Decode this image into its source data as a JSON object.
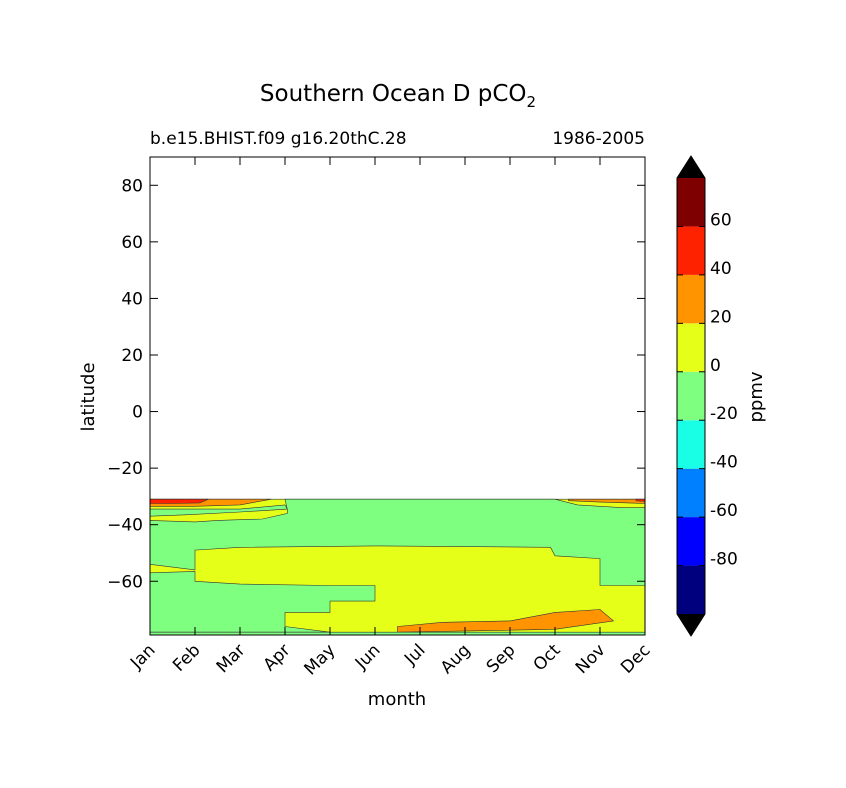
{
  "chart_data": {
    "type": "contour",
    "title": "Southern Ocean D pCO",
    "title_subscript": "2",
    "subtitle_left": "b.e15.BHIST.f09 g16.20thC.28",
    "subtitle_right": "1986-2005",
    "xlabel": "month",
    "ylabel": "latitude",
    "x_tick_labels": [
      "Jan",
      "Feb",
      "Mar",
      "Apr",
      "May",
      "Jun",
      "Jul",
      "Aug",
      "Sep",
      "Oct",
      "Nov",
      "Dec"
    ],
    "xlim": [
      0,
      11
    ],
    "ylim": [
      -79,
      90
    ],
    "y_ticks": [
      80,
      60,
      40,
      20,
      0,
      -20,
      -40,
      -60
    ],
    "y_tick_labels": [
      "80",
      "60",
      "40",
      "20",
      "0",
      "−20",
      "−40",
      "−60"
    ],
    "data_top_latitude": -31,
    "colorbar": {
      "label": "ppmv",
      "levels": [
        -100,
        -80,
        -60,
        -40,
        -20,
        0,
        20,
        40,
        60,
        80
      ],
      "tick_values": [
        60,
        40,
        20,
        0,
        -20,
        -40,
        -60,
        -80
      ],
      "tick_labels": [
        "60",
        "40",
        "20",
        "0",
        "-20",
        "-40",
        "-60",
        "-80"
      ],
      "colors": [
        "#00007f",
        "#0000ff",
        "#007fff",
        "#19ffe5",
        "#7fff7f",
        "#e5ff19",
        "#ff9400",
        "#ff2200",
        "#7f0000"
      ],
      "extend_low_color": "#000000",
      "extend_high_color": "#000000"
    },
    "regions": [
      {
        "level": "0 to 20",
        "color": "#e5ff19",
        "points": [
          [
            0,
            -31
          ],
          [
            11,
            -31
          ],
          [
            11,
            -79
          ],
          [
            0,
            -79
          ]
        ]
      },
      {
        "level": "-20 to 0",
        "color": "#7fff7f",
        "points": [
          [
            0,
            -34.5
          ],
          [
            2,
            -34.5
          ],
          [
            3,
            -33
          ],
          [
            3.05,
            -34.5
          ],
          [
            2,
            -35.5
          ],
          [
            0.8,
            -36.5
          ],
          [
            0,
            -37
          ]
        ]
      },
      {
        "level": "-20 to 0",
        "color": "#7fff7f",
        "points": [
          [
            3,
            -31
          ],
          [
            9,
            -31
          ],
          [
            9.5,
            -33
          ],
          [
            10.5,
            -34
          ],
          [
            11,
            -34
          ],
          [
            11,
            -61.5
          ],
          [
            10,
            -61.5
          ],
          [
            10,
            -52
          ],
          [
            9,
            -51
          ],
          [
            8.9,
            -48
          ],
          [
            5,
            -47.5
          ],
          [
            2,
            -48
          ],
          [
            1,
            -49
          ],
          [
            1,
            -56
          ],
          [
            0,
            -54
          ],
          [
            0,
            -38.5
          ],
          [
            1,
            -39
          ],
          [
            1.5,
            -38.5
          ],
          [
            2.5,
            -38
          ],
          [
            3.05,
            -36
          ],
          [
            3.05,
            -34.5
          ]
        ]
      },
      {
        "level": "-20 to 0",
        "color": "#7fff7f",
        "points": [
          [
            0,
            -57
          ],
          [
            1,
            -56.5
          ],
          [
            1,
            -60
          ],
          [
            2,
            -61
          ],
          [
            4,
            -61.5
          ],
          [
            5,
            -61.5
          ],
          [
            5,
            -67
          ],
          [
            4,
            -67
          ],
          [
            4,
            -71
          ],
          [
            3,
            -71
          ],
          [
            3,
            -76
          ],
          [
            4,
            -78
          ],
          [
            0,
            -78
          ]
        ]
      },
      {
        "level": "20 to 40",
        "color": "#ff9400",
        "points": [
          [
            5.5,
            -76
          ],
          [
            6.5,
            -74.5
          ],
          [
            8,
            -74
          ],
          [
            9,
            -71
          ],
          [
            10,
            -70
          ],
          [
            10.3,
            -74
          ],
          [
            9,
            -77
          ],
          [
            5.5,
            -78
          ]
        ]
      },
      {
        "level": "20 to 40",
        "color": "#ff9400",
        "points": [
          [
            0,
            -31
          ],
          [
            2.7,
            -31
          ],
          [
            2,
            -33
          ],
          [
            1,
            -33.5
          ],
          [
            0,
            -33.5
          ]
        ]
      },
      {
        "level": "20 to 40",
        "color": "#ff9400",
        "points": [
          [
            9.3,
            -31
          ],
          [
            11,
            -31
          ],
          [
            11,
            -32.5
          ],
          [
            10,
            -32
          ],
          [
            9.3,
            -31.5
          ]
        ]
      },
      {
        "level": "40 to 60",
        "color": "#ff2200",
        "points": [
          [
            0,
            -31
          ],
          [
            1.3,
            -31
          ],
          [
            1.1,
            -32.3
          ],
          [
            0.5,
            -32.5
          ],
          [
            0,
            -32.5
          ]
        ]
      },
      {
        "level": "40 to 60",
        "color": "#ff2200",
        "points": [
          [
            10.8,
            -31
          ],
          [
            11,
            -31
          ],
          [
            11,
            -31.8
          ],
          [
            10.8,
            -31.6
          ]
        ]
      },
      {
        "level": "-20 to 0",
        "color": "#7fff7f",
        "points": [
          [
            0,
            -78
          ],
          [
            11,
            -78
          ],
          [
            11,
            -79
          ],
          [
            0,
            -79
          ]
        ]
      }
    ]
  }
}
